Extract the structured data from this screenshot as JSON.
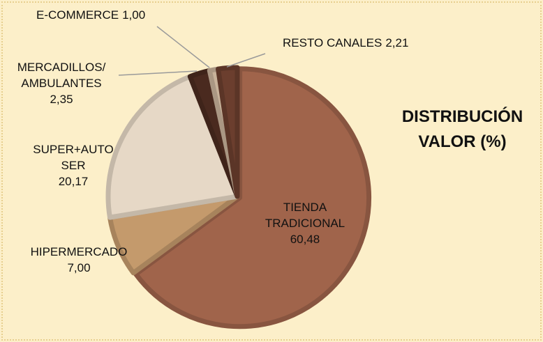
{
  "chart_data": {
    "type": "pie",
    "title": "DISTRIBUCIÓN VALOR (%)",
    "categories": [
      "TIENDA TRADICIONAL",
      "HIPERMERCADO",
      "SUPER+AUTO SER",
      "MERCADILLOS/ AMBULANTES",
      "E-COMMERCE",
      "RESTO CANALES"
    ],
    "values": [
      60.48,
      7.0,
      20.17,
      2.35,
      1.0,
      2.21
    ],
    "value_labels": [
      "60,48",
      "7,00",
      "20,17",
      "2,35",
      "1,00",
      "2,21"
    ],
    "colors": [
      "#a0644b",
      "#c49a6c",
      "#e6d8c6",
      "#4a2a1f",
      "#c8b29a",
      "#6b3e2e"
    ]
  }
}
